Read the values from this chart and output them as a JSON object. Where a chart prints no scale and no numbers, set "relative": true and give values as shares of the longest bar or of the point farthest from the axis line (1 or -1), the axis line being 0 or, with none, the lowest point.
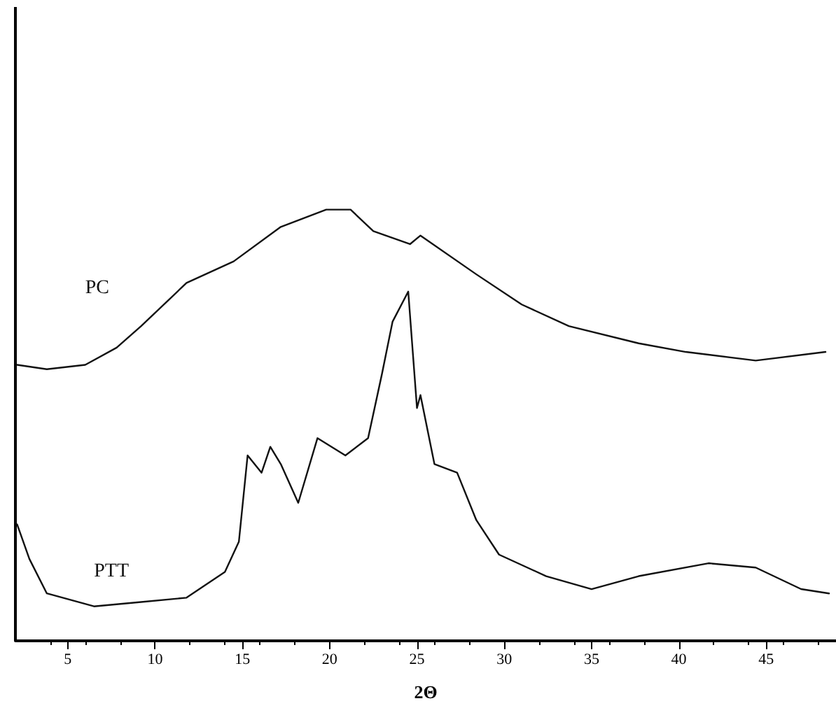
{
  "chart_data": {
    "type": "line",
    "xlabel": "2Θ",
    "relative": true,
    "xlim": [
      2,
      49
    ],
    "xticks": [
      5,
      10,
      15,
      20,
      25,
      30,
      35,
      40,
      45
    ],
    "grid": false,
    "legend": false,
    "marker": "none",
    "line_style": "solid",
    "series": [
      {
        "name": "PC",
        "color": "#111111",
        "x": [
          2.1,
          3.8,
          6.0,
          7.8,
          9.2,
          11.8,
          14.5,
          17.2,
          19.8,
          21.2,
          22.5,
          24.6,
          25.2,
          28.4,
          31.0,
          33.7,
          37.7,
          40.4,
          44.4,
          48.4
        ],
        "values": [
          0.64,
          0.63,
          0.64,
          0.68,
          0.73,
          0.83,
          0.88,
          0.96,
          1.0,
          1.0,
          0.95,
          0.92,
          0.94,
          0.85,
          0.78,
          0.73,
          0.69,
          0.67,
          0.65,
          0.67
        ]
      },
      {
        "name": "PTT",
        "color": "#111111",
        "x": [
          2.1,
          2.8,
          3.8,
          6.5,
          9.2,
          11.8,
          14.0,
          14.8,
          15.3,
          16.1,
          16.6,
          17.2,
          18.2,
          19.3,
          20.9,
          22.2,
          23.0,
          23.6,
          24.5,
          25.0,
          25.2,
          26.0,
          27.3,
          28.4,
          29.7,
          32.4,
          35.0,
          37.7,
          41.7,
          44.4,
          47.0,
          48.6
        ],
        "values": [
          0.27,
          0.19,
          0.11,
          0.08,
          0.09,
          0.1,
          0.16,
          0.23,
          0.43,
          0.39,
          0.45,
          0.41,
          0.32,
          0.47,
          0.43,
          0.47,
          0.62,
          0.74,
          0.81,
          0.54,
          0.57,
          0.41,
          0.39,
          0.28,
          0.2,
          0.15,
          0.12,
          0.15,
          0.18,
          0.17,
          0.12,
          0.11
        ]
      }
    ]
  }
}
